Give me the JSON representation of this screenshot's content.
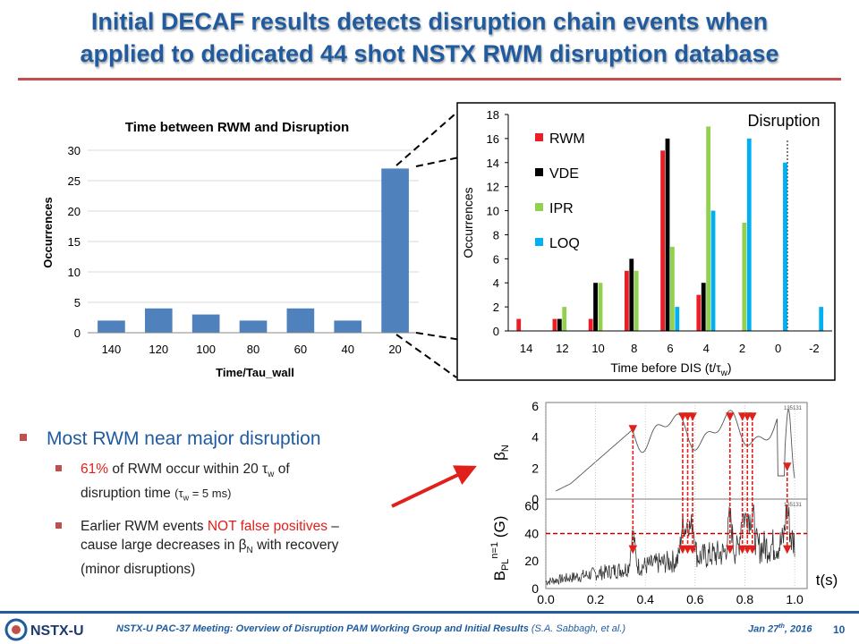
{
  "slide": {
    "title_line1": "Initial DECAF results detects disruption chain events when",
    "title_line2": "applied to dedicated 44 shot NSTX RWM disruption database",
    "page_number": "10"
  },
  "bullets": {
    "main": "Most RWM near major disruption",
    "sub1_red": "61%",
    "sub1_rest": " of RWM occur within 20 τ",
    "sub1_w": "w",
    "sub1_tail": " of",
    "sub1_line2": "disruption time",
    "sub1_paren": "(τ",
    "sub1_paren_sub": "w",
    "sub1_paren_tail": " = 5 ms)",
    "sub2_pre": "Earlier RWM events ",
    "sub2_red": "NOT false positives",
    "sub2_line1_tail": " –",
    "sub2_line2a": "cause large decreases in β",
    "sub2_line2_sub": "N",
    "sub2_line2b": " with recovery",
    "sub2_line3": "(minor disruptions)"
  },
  "footer": {
    "meeting": "NSTX-U PAC-37 Meeting: Overview of Disruption PAM Working Group and Initial Results",
    "authors": "(S.A. Sabbagh, et al.)",
    "date": "Jan 27",
    "date_sup": "th",
    "date_year": ", 2016",
    "logo_text": "NSTX-U"
  },
  "chart_data": [
    {
      "type": "bar",
      "title": "Time between RWM and Disruption",
      "xlabel": "Time/Tau_wall",
      "ylabel": "Occurrences",
      "categories": [
        "140",
        "120",
        "100",
        "80",
        "60",
        "40",
        "20"
      ],
      "values": [
        2,
        4,
        3,
        2,
        4,
        2,
        27
      ],
      "ylim": [
        0,
        30
      ],
      "yticks": [
        "0",
        "5",
        "10",
        "15",
        "20",
        "25",
        "30"
      ],
      "color": "#4f81bd",
      "grid": true
    },
    {
      "type": "bar",
      "title": "Disruption",
      "xlabel": "Time before DIS (t/τw)",
      "ylabel": "Occurrences",
      "categories": [
        "14",
        "12",
        "10",
        "8",
        "6",
        "4",
        "2",
        "0",
        "-2"
      ],
      "series": [
        {
          "name": "RWM",
          "color": "#ee1c25",
          "values": [
            1,
            1,
            1,
            5,
            15,
            3,
            0,
            0,
            0
          ]
        },
        {
          "name": "VDE",
          "color": "#000000",
          "values": [
            0,
            1,
            4,
            6,
            16,
            4,
            0,
            0,
            0
          ]
        },
        {
          "name": "IPR",
          "color": "#92d050",
          "values": [
            0,
            2,
            4,
            5,
            7,
            17,
            9,
            0,
            0
          ]
        },
        {
          "name": "LOQ",
          "color": "#00b0f0",
          "values": [
            0,
            0,
            0,
            0,
            2,
            10,
            16,
            14,
            2
          ]
        }
      ],
      "ylim": [
        0,
        18
      ],
      "yticks": [
        "0",
        "2",
        "4",
        "6",
        "8",
        "10",
        "12",
        "14",
        "16",
        "18"
      ],
      "legend": "left"
    },
    {
      "type": "line",
      "shot": "135131",
      "panels": [
        {
          "ylabel": "βN",
          "yticks": [
            "0",
            "2",
            "4",
            "6"
          ],
          "ylim": [
            0,
            6
          ]
        },
        {
          "ylabel": "BPL n=1 (G)",
          "yticks": [
            "0",
            "20",
            "40",
            "60"
          ],
          "ylim": [
            0,
            65
          ],
          "threshold": 40
        }
      ],
      "xlabel": "t(s)",
      "xticks": [
        "0.0",
        "0.2",
        "0.4",
        "0.6",
        "0.8",
        "1.0"
      ],
      "xlim": [
        0,
        1.05
      ],
      "event_times": [
        0.35,
        0.55,
        0.57,
        0.59,
        0.74,
        0.79,
        0.81,
        0.83,
        0.97
      ]
    }
  ]
}
